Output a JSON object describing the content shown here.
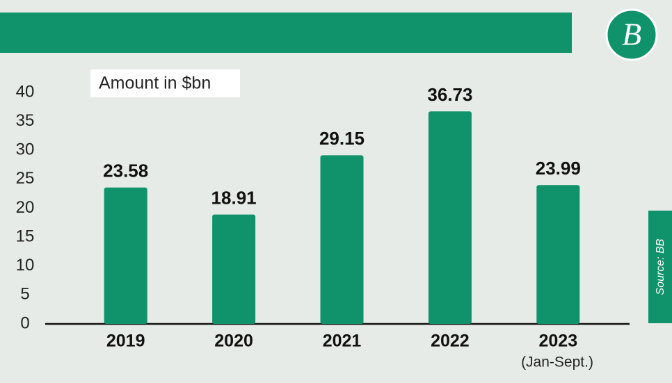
{
  "chart_data": {
    "type": "bar",
    "y_label": "Amount in $bn",
    "categories": [
      "2019",
      "2020",
      "2021",
      "2022",
      "2023"
    ],
    "category_note": "(Jan-Sept.)",
    "values": [
      23.58,
      18.91,
      29.15,
      36.73,
      23.99
    ],
    "color": "#10936a",
    "ylim": [
      0,
      40
    ],
    "yticks": [
      0,
      5,
      10,
      15,
      20,
      25,
      30,
      35,
      40
    ],
    "source": "Source: BB",
    "logo": "B"
  }
}
